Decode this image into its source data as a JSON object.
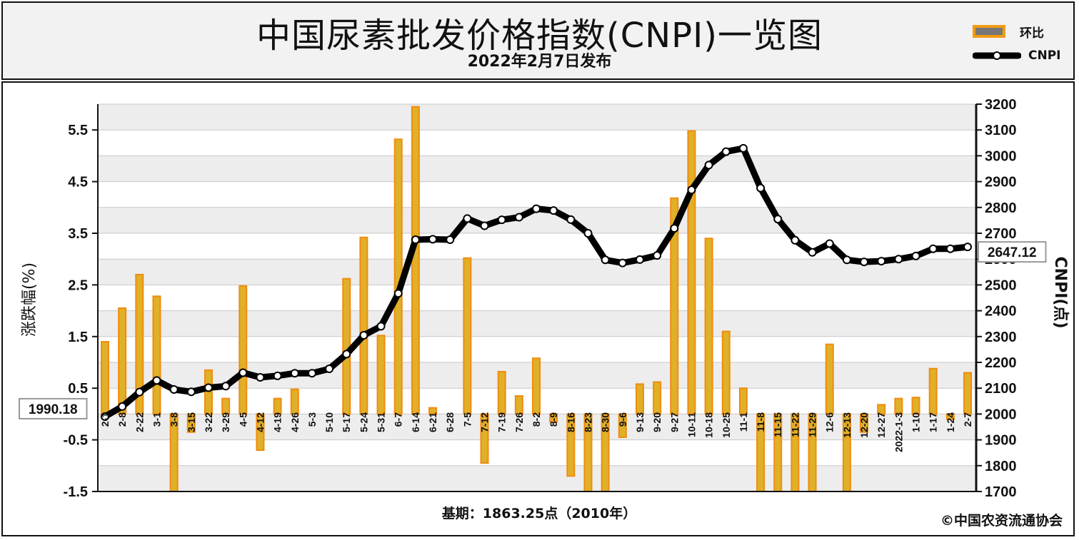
{
  "title": "中国尿素批发价格指数(CNPI)一览图",
  "subtitle": "2022年2月7日发布",
  "legend": {
    "bar_label": "环比",
    "line_label": "CNPI"
  },
  "footer": {
    "base_note": "基期：1863.25点（2010年）",
    "credit": "©中国农资流通协会"
  },
  "colors": {
    "bar_fill": "#e0b028",
    "bar_edge": "#f08c10",
    "line": "#000000",
    "grid": "#c8c8c8"
  },
  "chart_data": {
    "type": "bar",
    "ylabel": "涨跌幅(%)",
    "y2label": "CNPI(点)",
    "ylim": [
      -1.5,
      6.0
    ],
    "y2lim": [
      1700,
      3200
    ],
    "yticks": [
      "5.5",
      "4.5",
      "3.5",
      "2.5",
      "1.5",
      "0.5",
      "-0.5",
      "-1.5"
    ],
    "y2ticks": [
      "3200",
      "3100",
      "3000",
      "2900",
      "2800",
      "2700",
      "2600",
      "2500",
      "2400",
      "2300",
      "2200",
      "2100",
      "2000",
      "1900",
      "1800",
      "1700"
    ],
    "grid": true,
    "legend_position": "top-right",
    "categories": [
      "2-1",
      "2-8",
      "2-22",
      "3-1",
      "3-8",
      "3-15",
      "3-22",
      "3-29",
      "4-5",
      "4-12",
      "4-19",
      "4-26",
      "5-3",
      "5-10",
      "5-17",
      "5-24",
      "5-31",
      "6-7",
      "6-14",
      "6-21",
      "6-28",
      "7-5",
      "7-12",
      "7-19",
      "7-26",
      "8-2",
      "8-9",
      "8-16",
      "8-23",
      "8-30",
      "9-6",
      "9-13",
      "9-20",
      "9-27",
      "10-11",
      "10-18",
      "10-25",
      "11-1",
      "11-8",
      "11-15",
      "11-22",
      "11-29",
      "12-6",
      "12-13",
      "12-20",
      "12-27",
      "2022-1-3",
      "1-10",
      "1-17",
      "1-24",
      "2-7"
    ],
    "series": [
      {
        "name": "环比",
        "type": "bar",
        "values": [
          1.4,
          2.05,
          2.7,
          2.28,
          -1.5,
          -0.35,
          0.85,
          0.3,
          2.48,
          -0.7,
          0.3,
          0.48,
          0.0,
          0.0,
          2.62,
          3.42,
          1.52,
          5.32,
          5.95,
          0.12,
          0.0,
          3.02,
          -0.95,
          0.82,
          0.35,
          1.08,
          -0.15,
          -1.2,
          -1.5,
          -1.5,
          -0.45,
          0.58,
          0.62,
          4.18,
          5.48,
          3.4,
          1.6,
          0.5,
          -1.5,
          -1.5,
          -1.5,
          -1.5,
          1.35,
          -1.5,
          -0.35,
          0.18,
          0.3,
          0.32,
          0.88,
          -0.1,
          0.8
        ]
      },
      {
        "name": "CNPI",
        "type": "line",
        "values": [
          1990.18,
          2029,
          2085,
          2130,
          2095,
          2086,
          2102,
          2108,
          2160,
          2142,
          2148,
          2158,
          2158,
          2175,
          2232,
          2305,
          2340,
          2467,
          2675,
          2677,
          2675,
          2757,
          2729,
          2752,
          2762,
          2795,
          2788,
          2753,
          2700,
          2597,
          2585,
          2598,
          2614,
          2719,
          2868,
          2964,
          3016,
          3029,
          2875,
          2755,
          2673,
          2626,
          2660,
          2597,
          2589,
          2592,
          2600,
          2612,
          2640,
          2640,
          2647.12
        ]
      }
    ],
    "annotations": [
      "1990.18",
      "2647.12"
    ]
  }
}
